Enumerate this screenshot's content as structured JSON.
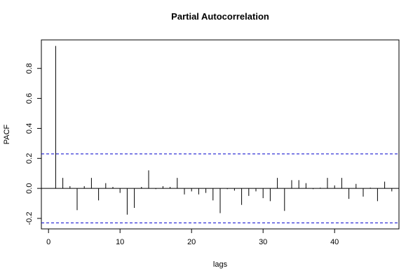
{
  "chart_data": {
    "type": "bar",
    "title": "Partial Autocorrelation",
    "xlabel": "lags",
    "ylabel": "PACF",
    "xlim": [
      -1,
      49
    ],
    "ylim": [
      -0.27,
      0.99
    ],
    "x_ticks": [
      0,
      10,
      20,
      30,
      40
    ],
    "y_ticks": [
      -0.2,
      0.0,
      0.2,
      0.4,
      0.6,
      0.8
    ],
    "y_tick_labels": [
      "-0.2",
      "0.0",
      "0.2",
      "0.4",
      "0.6",
      "0.8"
    ],
    "confidence_limits": [
      0.23,
      -0.23
    ],
    "confidence_color": "#0000cc",
    "zero_line": 0,
    "grid": false,
    "lags": [
      0,
      1,
      2,
      3,
      4,
      5,
      6,
      7,
      8,
      9,
      10,
      11,
      12,
      13,
      14,
      15,
      16,
      17,
      18,
      19,
      20,
      21,
      22,
      23,
      24,
      25,
      26,
      27,
      28,
      29,
      30,
      31,
      32,
      33,
      34,
      35,
      36,
      37,
      38,
      39,
      40,
      41,
      42,
      43,
      44,
      45,
      46,
      47,
      48
    ],
    "values": [
      0.0,
      0.95,
      0.07,
      0.015,
      -0.145,
      0.015,
      0.07,
      -0.08,
      0.035,
      0.01,
      -0.03,
      -0.175,
      -0.13,
      0.01,
      0.12,
      -0.005,
      0.015,
      0.01,
      0.07,
      -0.04,
      -0.02,
      -0.04,
      -0.03,
      -0.08,
      -0.165,
      -0.005,
      -0.015,
      -0.11,
      -0.05,
      -0.02,
      -0.065,
      -0.085,
      0.07,
      -0.15,
      0.055,
      0.055,
      0.035,
      -0.005,
      0.005,
      0.07,
      0.02,
      0.07,
      -0.07,
      0.03,
      -0.055,
      0.005,
      -0.085,
      0.045,
      -0.02
    ]
  }
}
